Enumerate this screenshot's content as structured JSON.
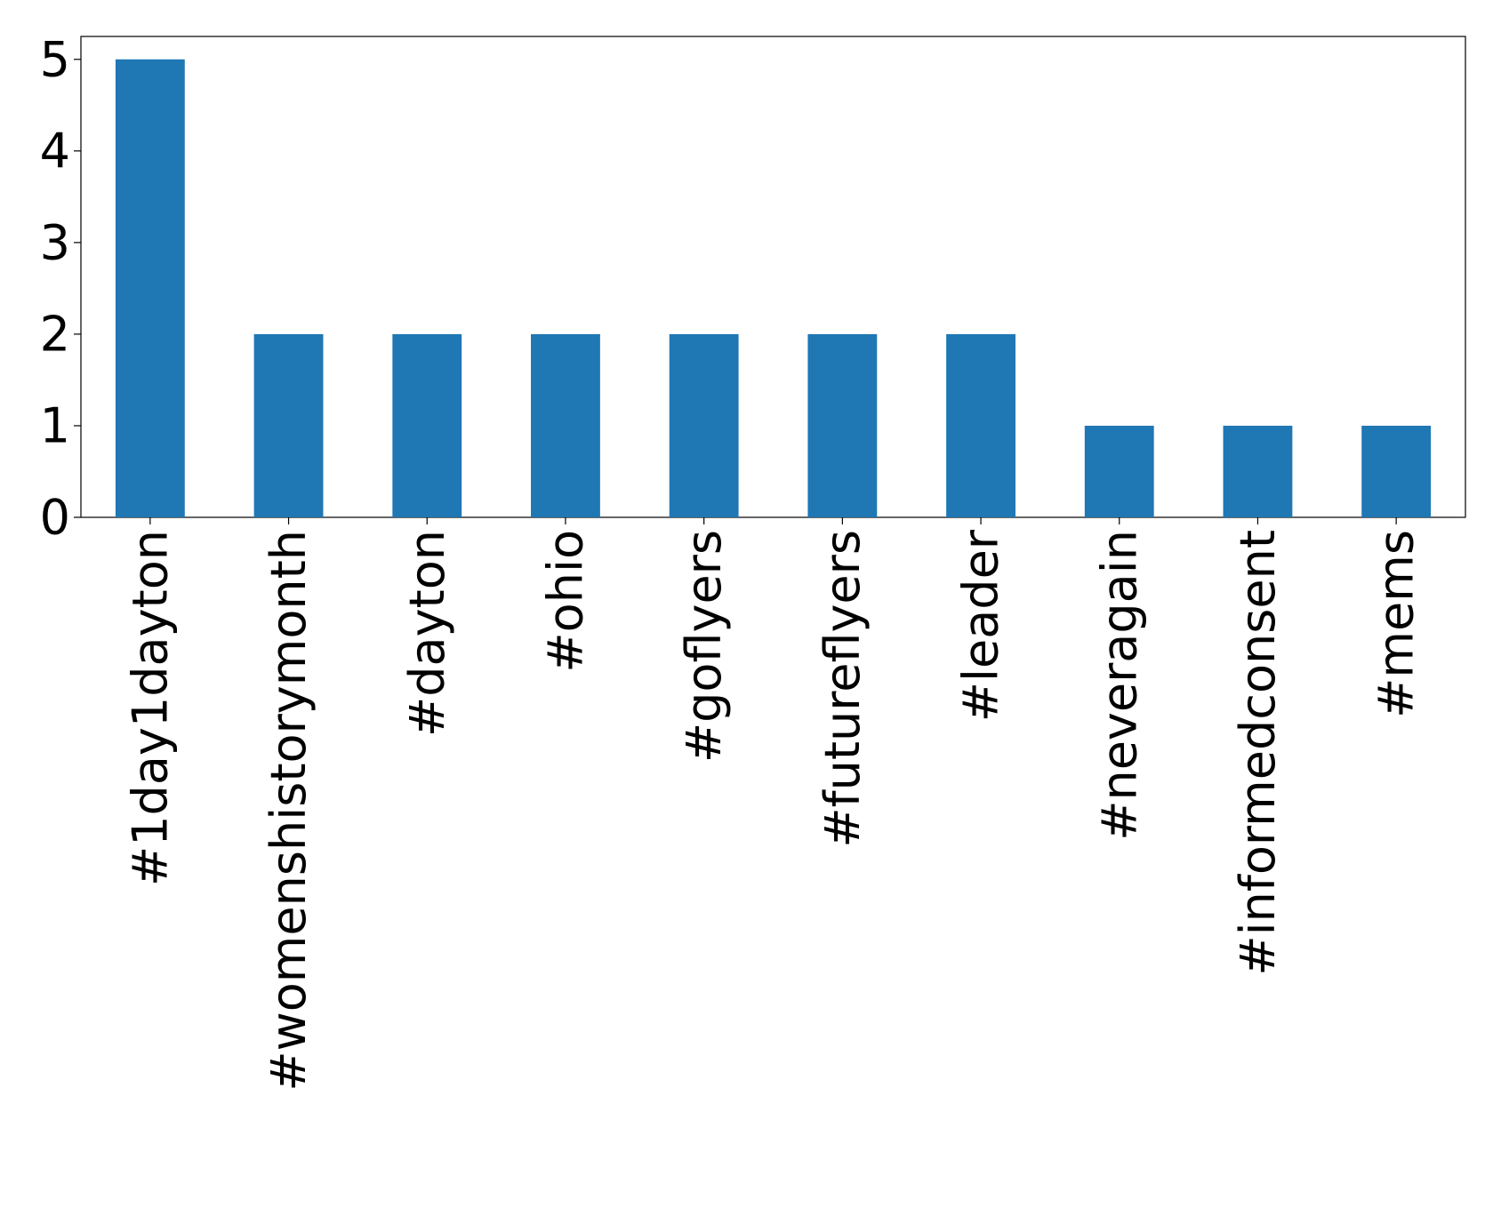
{
  "chart_data": {
    "type": "bar",
    "categories": [
      "#1day1dayton",
      "#womenshistorymonth",
      "#dayton",
      "#ohio",
      "#goflyers",
      "#futureflyers",
      "#leader",
      "#neveragain",
      "#informedconsent",
      "#mems"
    ],
    "values": [
      5,
      2,
      2,
      2,
      2,
      2,
      2,
      1,
      1,
      1
    ],
    "color": "#1f77b4",
    "ylim": [
      0,
      5.25
    ],
    "yticks": [
      0,
      1,
      2,
      3,
      4,
      5
    ],
    "grid": false
  }
}
